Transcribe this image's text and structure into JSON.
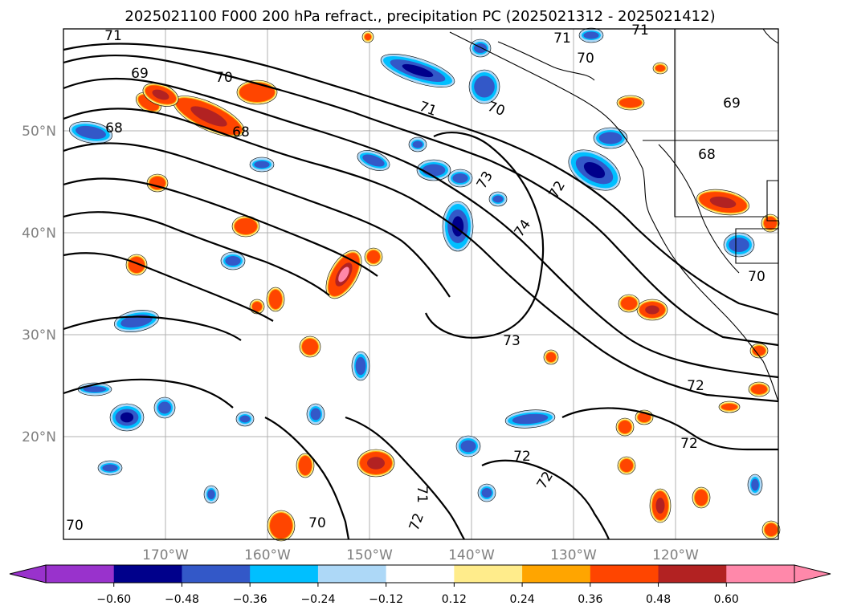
{
  "title": "2025021100 F000 200 hPa refract., precipitation PC (2025021312 - 2025021412)",
  "map": {
    "longitude_labels": [
      "170°W",
      "160°W",
      "150°W",
      "140°W",
      "130°W",
      "120°W"
    ],
    "latitude_labels": [
      "50°N",
      "40°N",
      "30°N",
      "20°N"
    ],
    "contour_labels": [
      "71",
      "71",
      "71",
      "70",
      "69",
      "70",
      "69",
      "68",
      "68",
      "71",
      "70",
      "68",
      "73",
      "72",
      "74",
      "73",
      "72",
      "72",
      "72",
      "72",
      "71",
      "72",
      "70",
      "70",
      "70"
    ],
    "gridlines": true,
    "contour_color": "#000000",
    "coastline_color": "#000000"
  },
  "colorbar": {
    "tick_labels": [
      "−0.60",
      "−0.48",
      "−0.36",
      "−0.24",
      "−0.12",
      "0.12",
      "0.24",
      "0.36",
      "0.48",
      "0.60"
    ],
    "colors": [
      "#9932cc",
      "#00008b",
      "#3358c8",
      "#00bfff",
      "#add8f7",
      "#ffffff",
      "#ffec8b",
      "#ffa500",
      "#ff4500",
      "#b22222",
      "#ff88aa"
    ],
    "extend": "both"
  }
}
